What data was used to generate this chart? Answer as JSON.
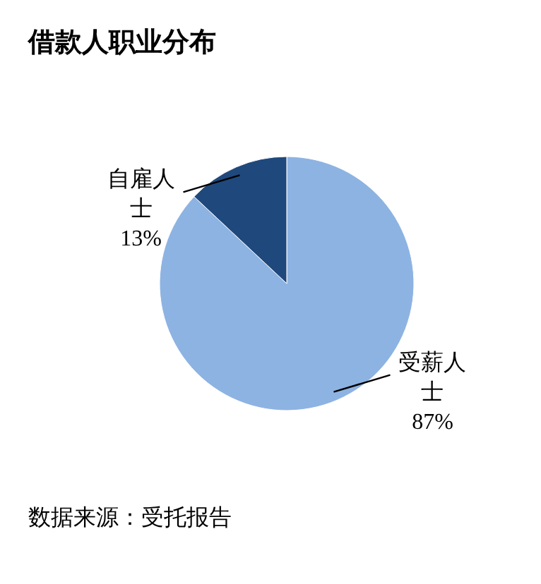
{
  "chart_data": {
    "type": "pie",
    "title": "借款人职业分布",
    "categories": [
      "受薪人士",
      "自雇人士"
    ],
    "values": [
      87,
      13
    ],
    "colors": [
      "#8db3e2",
      "#1f497d"
    ],
    "value_labels": [
      "87%",
      "13%"
    ],
    "annotations": [
      "数据来源：受托报告"
    ]
  }
}
